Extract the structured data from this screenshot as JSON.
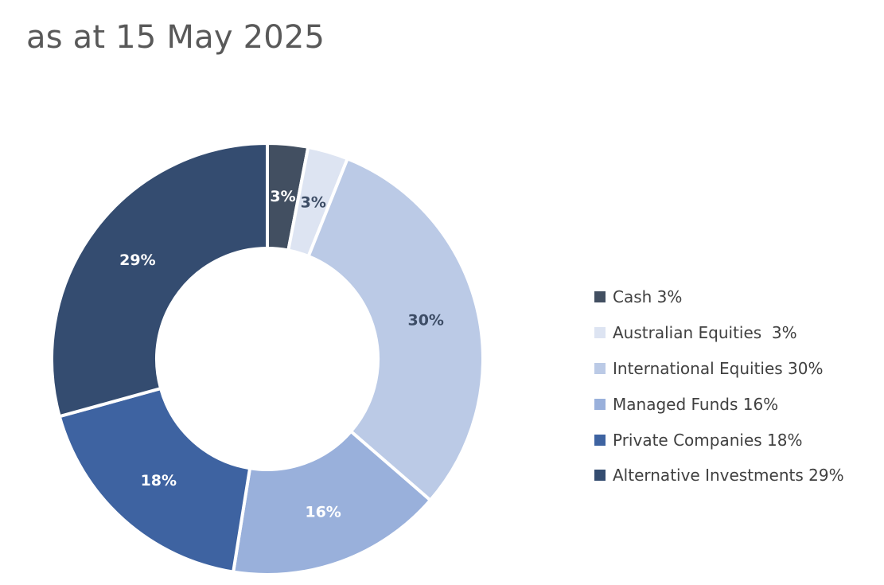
{
  "chart_data": {
    "type": "pie",
    "style": "donut",
    "title": "as at 15 May 2025",
    "legend_position": "right",
    "slices": [
      {
        "legend": "Cash 3%",
        "label": "3%",
        "value": 3,
        "color": "#424f61",
        "label_color": "#ffffff"
      },
      {
        "legend": "Australian Equities  3%",
        "label": "3%",
        "value": 3,
        "color": "#dde4f2",
        "label_color": "#3d4d66"
      },
      {
        "legend": "International Equities 30%",
        "label": "30%",
        "value": 30,
        "color": "#bbcae6",
        "label_color": "#3d4d66"
      },
      {
        "legend": "Managed Funds 16%",
        "label": "16%",
        "value": 16,
        "color": "#99b0db",
        "label_color": "#ffffff"
      },
      {
        "legend": "Private Companies 18%",
        "label": "18%",
        "value": 18,
        "color": "#3e63a1",
        "label_color": "#ffffff"
      },
      {
        "legend": "Alternative Investments 29%",
        "label": "29%",
        "value": 29,
        "color": "#344c70",
        "label_color": "#ffffff"
      }
    ]
  }
}
